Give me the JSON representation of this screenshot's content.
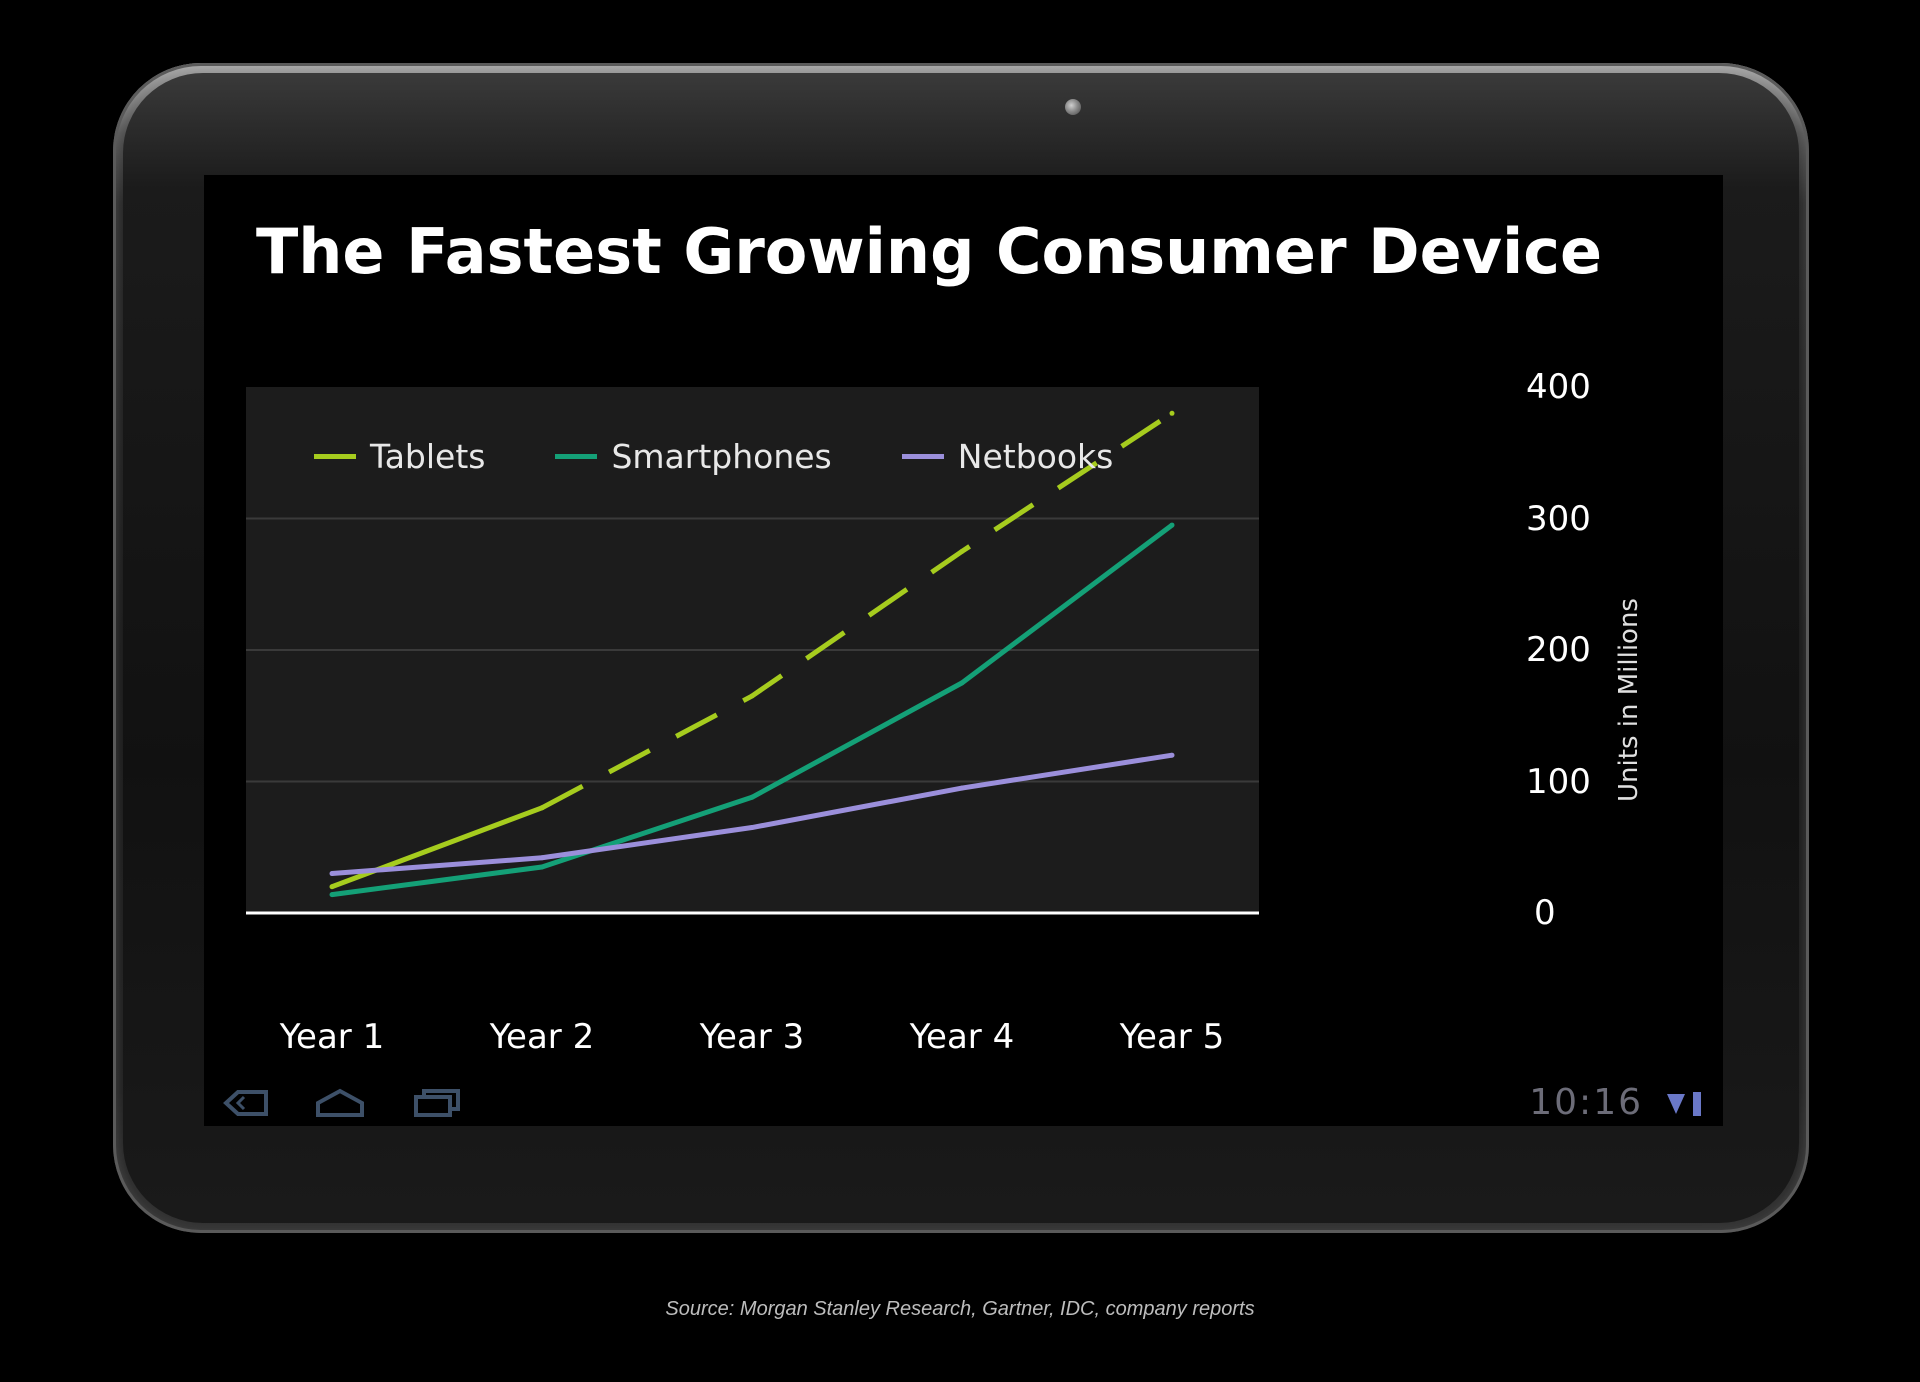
{
  "chart_data": {
    "type": "line",
    "title": "The Fastest Growing Consumer Device",
    "xlabel": "",
    "ylabel": "Units in Millions",
    "categories": [
      "Year 1",
      "Year 2",
      "Year 3",
      "Year 4",
      "Year 5"
    ],
    "ylim": [
      0,
      400
    ],
    "yticks": [
      0,
      100,
      200,
      300,
      400
    ],
    "grid": true,
    "legend_position": "top-left",
    "series": [
      {
        "name": "Tablets",
        "color": "#a6cc1e",
        "style": "solid-then-dashed",
        "values": [
          20,
          80,
          165,
          275,
          380
        ]
      },
      {
        "name": "Smartphones",
        "color": "#14a077",
        "style": "solid",
        "values": [
          14,
          35,
          88,
          175,
          295
        ]
      },
      {
        "name": "Netbooks",
        "color": "#9b8fdb",
        "style": "solid",
        "values": [
          30,
          42,
          65,
          95,
          120
        ]
      }
    ]
  },
  "legend": {
    "tablets": "Tablets",
    "smartphones": "Smartphones",
    "netbooks": "Netbooks"
  },
  "status_bar": {
    "time": "10:16"
  },
  "source": "Source: Morgan Stanley Research, Gartner, IDC, company reports"
}
